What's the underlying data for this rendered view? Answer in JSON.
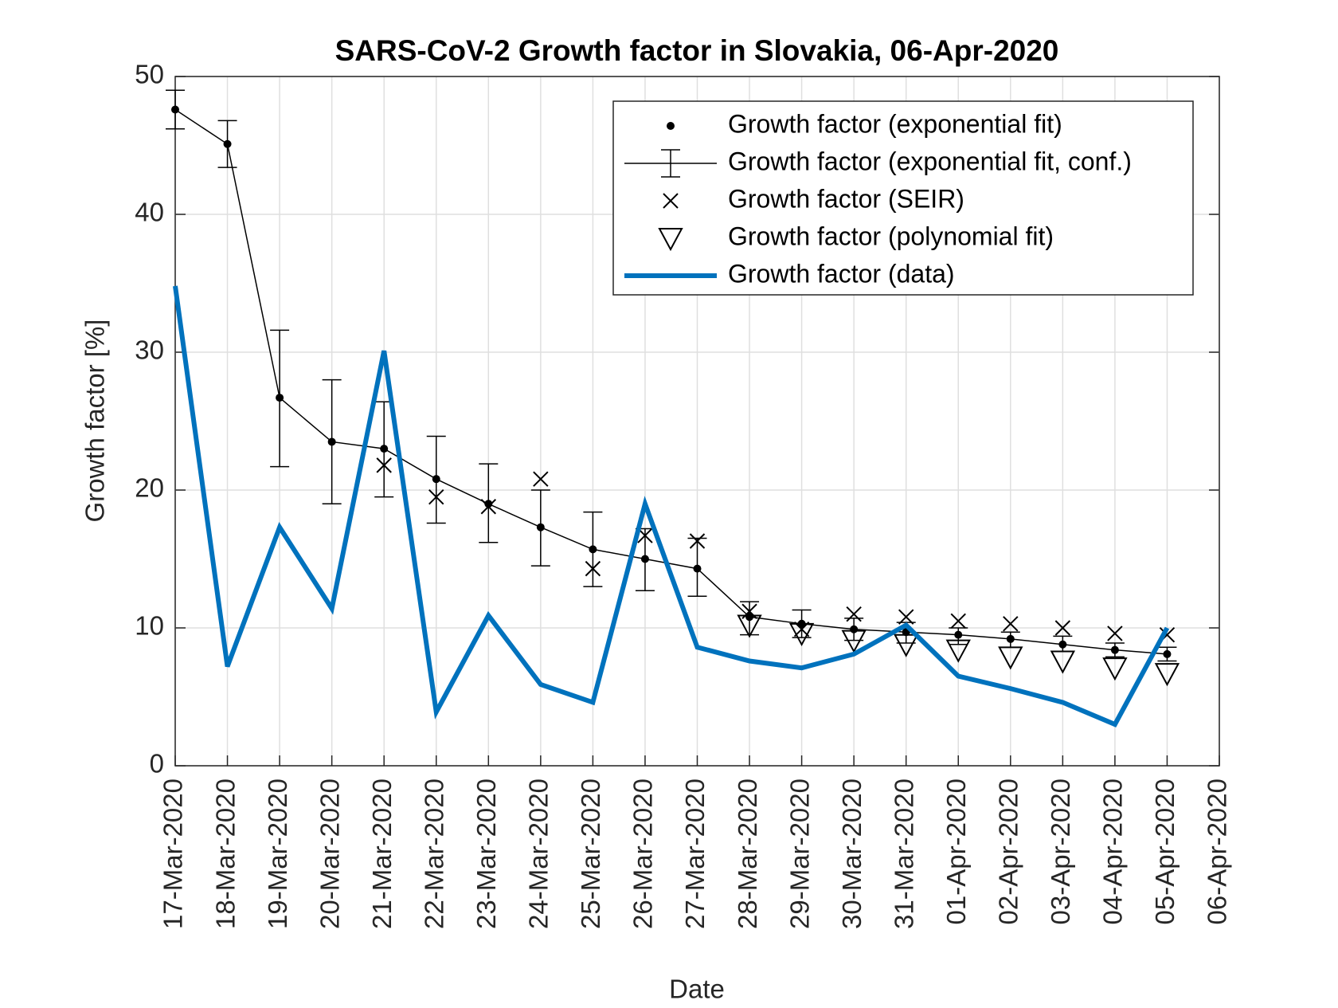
{
  "chart_data": {
    "type": "line",
    "title": "SARS-CoV-2 Growth factor in Slovakia, 06-Apr-2020",
    "xlabel": "Date",
    "ylabel": "Growth factor [%]",
    "categories": [
      "17-Mar-2020",
      "18-Mar-2020",
      "19-Mar-2020",
      "20-Mar-2020",
      "21-Mar-2020",
      "22-Mar-2020",
      "23-Mar-2020",
      "24-Mar-2020",
      "25-Mar-2020",
      "26-Mar-2020",
      "27-Mar-2020",
      "28-Mar-2020",
      "29-Mar-2020",
      "30-Mar-2020",
      "31-Mar-2020",
      "01-Apr-2020",
      "02-Apr-2020",
      "03-Apr-2020",
      "04-Apr-2020",
      "05-Apr-2020",
      "06-Apr-2020"
    ],
    "ylim": [
      0,
      50
    ],
    "yticks": [
      0,
      10,
      20,
      30,
      40,
      50
    ],
    "grid": true,
    "legend": "upper right",
    "series": [
      {
        "name": "Growth factor (exponential fit)",
        "style": "dot",
        "color": "#000000",
        "values": [
          47.6,
          45.1,
          26.7,
          23.5,
          23.0,
          20.8,
          19.0,
          17.3,
          15.7,
          15.0,
          14.3,
          10.8,
          10.3,
          9.9,
          9.7,
          9.5,
          9.2,
          8.8,
          8.4,
          8.1,
          null
        ]
      },
      {
        "name": "Growth factor (exponential fit, conf.)",
        "style": "errorbar",
        "color": "#000000",
        "values": [
          47.6,
          45.1,
          26.7,
          23.5,
          23.0,
          20.8,
          19.0,
          17.3,
          15.7,
          15.0,
          14.3,
          10.8,
          10.3,
          9.9,
          9.7,
          9.5,
          9.2,
          8.8,
          8.4,
          8.1,
          null
        ],
        "lower": [
          46.2,
          43.4,
          21.7,
          19.0,
          19.5,
          17.6,
          16.2,
          14.5,
          13.0,
          12.7,
          12.3,
          9.5,
          9.3,
          9.1,
          8.9,
          8.8,
          8.6,
          8.3,
          7.9,
          7.6,
          null
        ],
        "upper": [
          49.0,
          46.8,
          31.6,
          28.0,
          26.4,
          23.9,
          21.9,
          20.0,
          18.4,
          17.2,
          16.5,
          11.9,
          11.3,
          10.7,
          10.4,
          10.0,
          9.7,
          9.4,
          8.9,
          8.6,
          null
        ]
      },
      {
        "name": "Growth factor (SEIR)",
        "style": "x",
        "color": "#000000",
        "values": [
          null,
          null,
          null,
          null,
          21.8,
          19.5,
          18.8,
          20.8,
          14.3,
          16.7,
          16.3,
          11.2,
          9.9,
          11.0,
          10.8,
          10.5,
          10.3,
          10.0,
          9.6,
          9.5,
          null
        ]
      },
      {
        "name": "Growth factor (polynomial fit)",
        "style": "triangle",
        "color": "#000000",
        "values": [
          null,
          null,
          null,
          null,
          null,
          null,
          null,
          null,
          null,
          null,
          null,
          10.2,
          9.6,
          9.1,
          8.8,
          8.4,
          7.9,
          7.6,
          7.1,
          6.7,
          null
        ]
      },
      {
        "name": "Growth factor (data)",
        "style": "line",
        "color": "#0072bd",
        "values": [
          34.8,
          7.2,
          17.3,
          11.4,
          30.1,
          3.9,
          10.9,
          5.9,
          4.6,
          19.0,
          8.6,
          7.6,
          7.1,
          8.1,
          10.2,
          6.5,
          5.6,
          4.6,
          3.0,
          10.0,
          null
        ]
      }
    ]
  }
}
